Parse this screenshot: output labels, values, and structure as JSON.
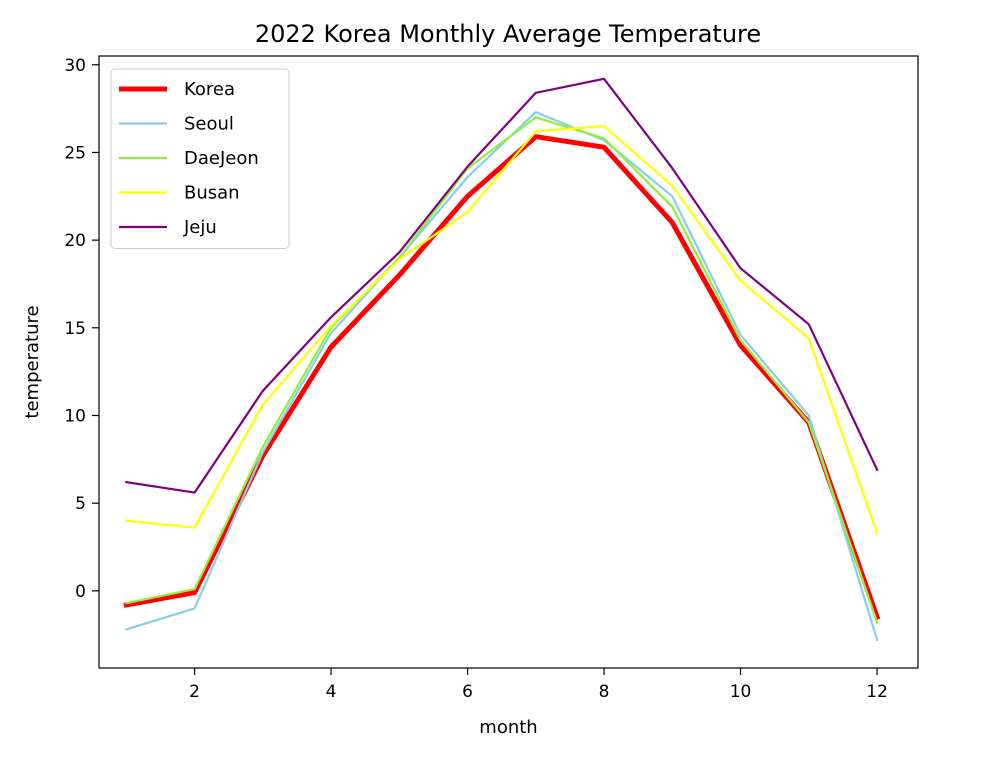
{
  "chart_data": {
    "type": "line",
    "title": "2022 Korea Monthly Average Temperature",
    "xlabel": "month",
    "ylabel": "temperature",
    "xlim": [
      0.6,
      12.6
    ],
    "ylim": [
      -4.4,
      30.5
    ],
    "xticks": [
      2,
      4,
      6,
      8,
      10,
      12
    ],
    "yticks": [
      0,
      5,
      10,
      15,
      20,
      25,
      30
    ],
    "grid": false,
    "legend_position": "upper-left",
    "x": [
      1,
      2,
      3,
      4,
      5,
      6,
      7,
      8,
      9,
      10,
      11,
      12
    ],
    "series": [
      {
        "name": "Korea",
        "color": "#ff0000",
        "width": "thick",
        "values": [
          -0.8,
          -0.1,
          7.7,
          13.9,
          18.0,
          22.5,
          25.9,
          25.3,
          21.0,
          14.0,
          9.6,
          -1.5
        ]
      },
      {
        "name": "Seoul",
        "color": "#87ceeb",
        "width": "normal",
        "values": [
          -2.2,
          -1.0,
          7.9,
          14.7,
          19.0,
          23.6,
          27.3,
          25.7,
          22.5,
          14.6,
          10.0,
          -2.8
        ]
      },
      {
        "name": "DaeJeon",
        "color": "#90ee3c",
        "width": "normal",
        "values": [
          -0.7,
          0.1,
          8.2,
          15.0,
          19.0,
          24.1,
          27.0,
          25.8,
          21.9,
          14.3,
          9.6,
          -1.8
        ]
      },
      {
        "name": "Busan",
        "color": "#ffff00",
        "width": "normal",
        "values": [
          4.0,
          3.6,
          10.6,
          15.1,
          18.9,
          21.6,
          26.2,
          26.5,
          23.1,
          17.7,
          14.4,
          3.3
        ]
      },
      {
        "name": "Jeju",
        "color": "#800080",
        "width": "normal",
        "values": [
          6.2,
          5.6,
          11.4,
          15.6,
          19.3,
          24.2,
          28.4,
          29.2,
          24.1,
          18.4,
          15.2,
          6.9
        ]
      }
    ]
  }
}
